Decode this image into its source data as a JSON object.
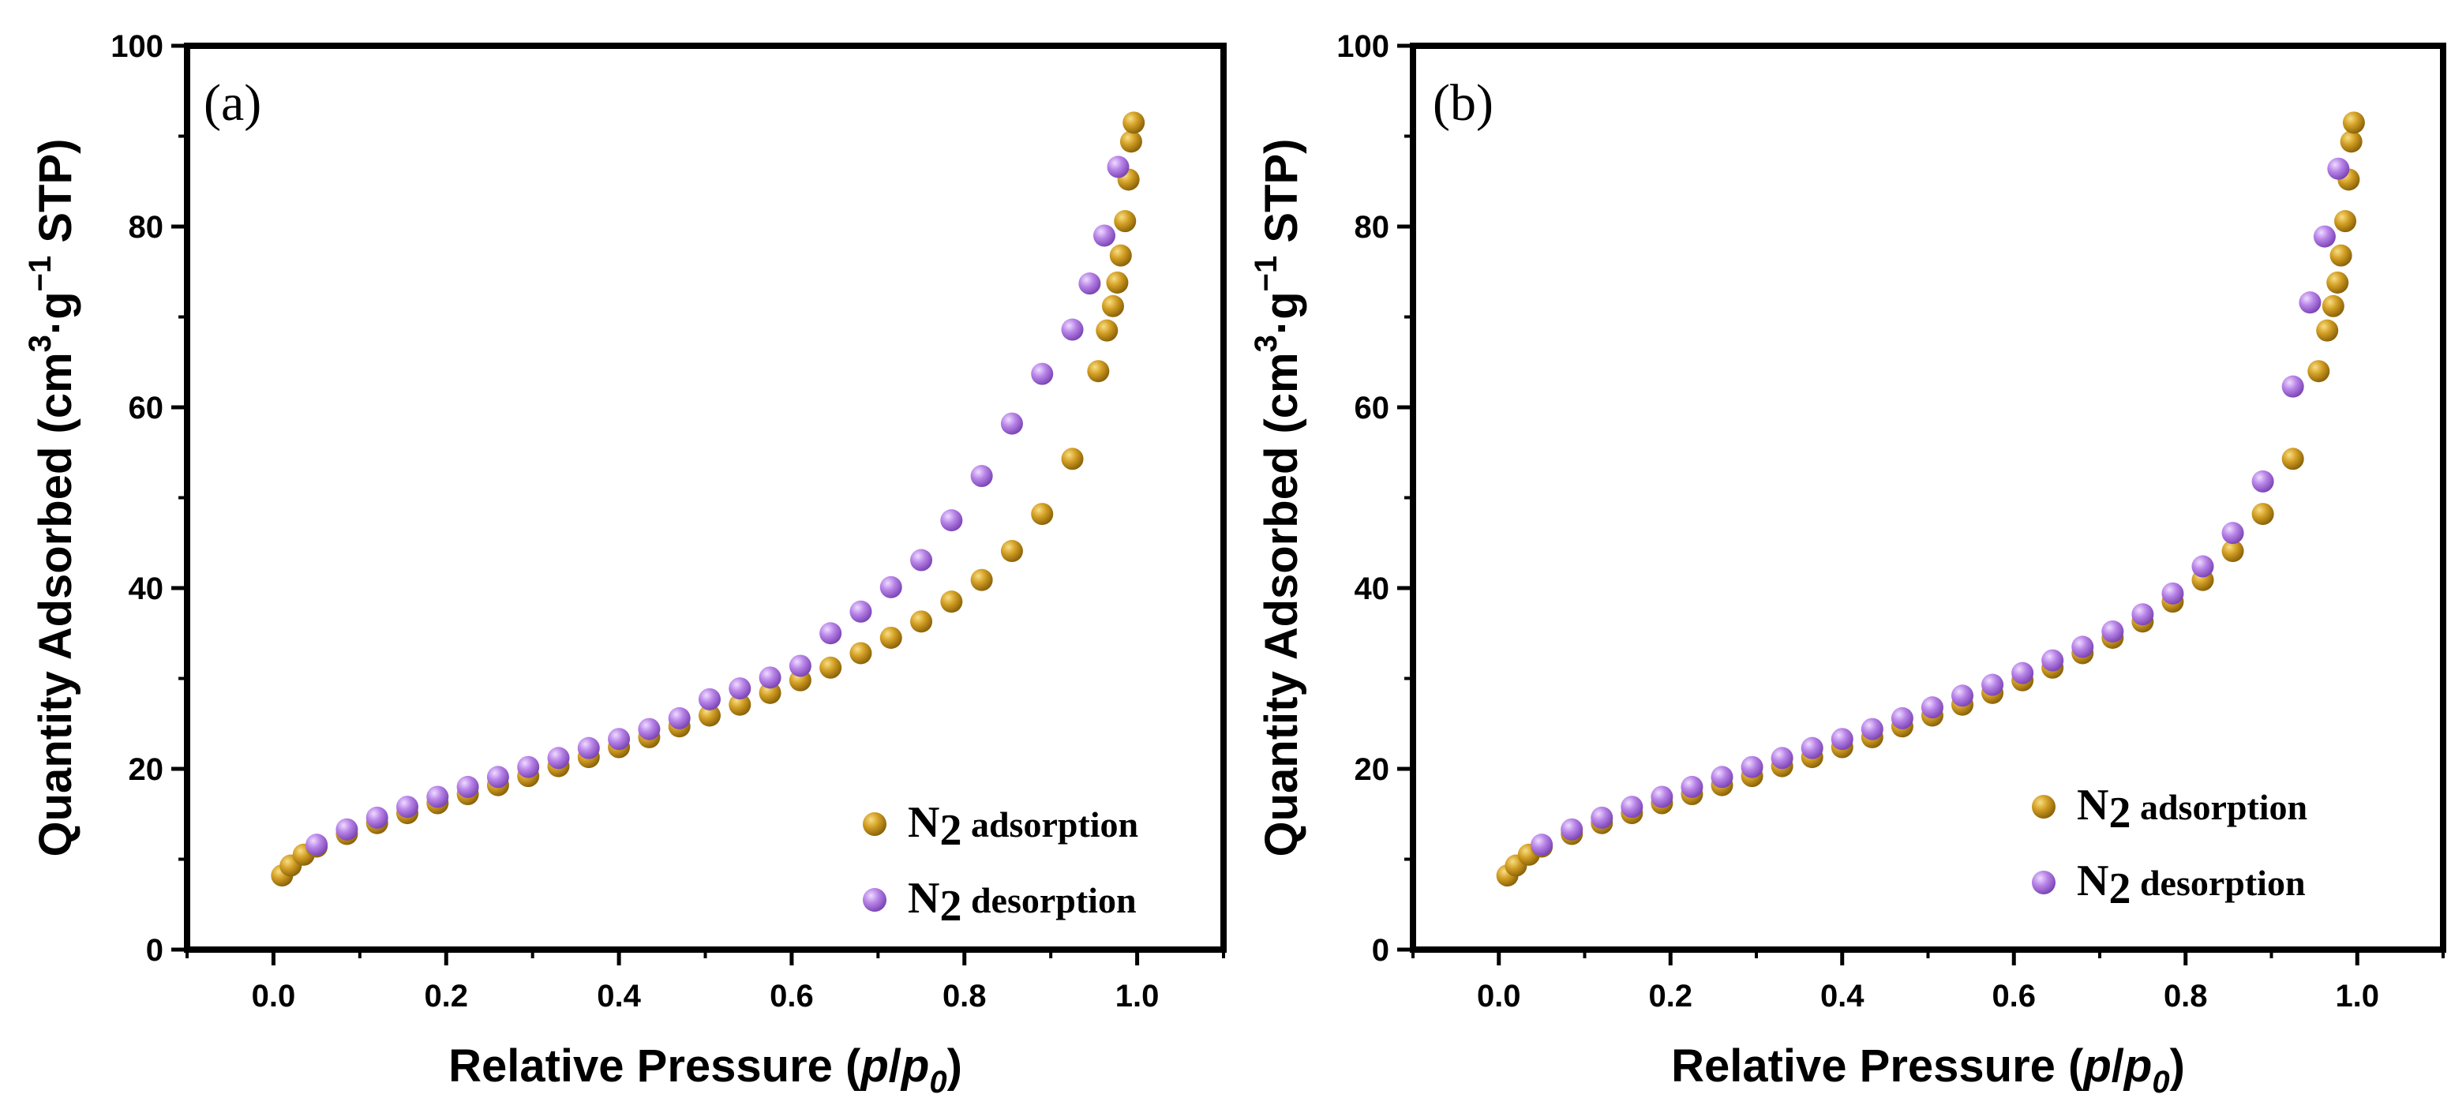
{
  "chart_data": [
    {
      "type": "scatter",
      "panel_label": "(a)",
      "xlabel": "Relative Pressure (",
      "xlabel_var1": "p",
      "xlabel_slash": "/",
      "xlabel_var2": "p",
      "xlabel_sub": "0",
      "xlabel_close": ")",
      "ylabel": "Quantity Adsorbed (cm",
      "ylabel_sup1": "3",
      "ylabel_mid": "·g",
      "ylabel_sup2": "−1",
      "ylabel_end": " STP)",
      "xlim": [
        -0.1,
        1.1
      ],
      "ylim": [
        0,
        100
      ],
      "xticks": [
        "0.0",
        "0.2",
        "0.4",
        "0.6",
        "0.8",
        "1.0"
      ],
      "yticks": [
        "0",
        "20",
        "40",
        "60",
        "80",
        "100"
      ],
      "legend_position": "lower-right",
      "series": [
        {
          "name": "N2 adsorption",
          "name_main": "N",
          "name_sub": "2",
          "name_rest": " adsorption",
          "color": "#C9961A",
          "x": [
            0.01,
            0.02,
            0.035,
            0.05,
            0.085,
            0.12,
            0.155,
            0.19,
            0.225,
            0.26,
            0.295,
            0.33,
            0.365,
            0.4,
            0.435,
            0.47,
            0.505,
            0.54,
            0.575,
            0.61,
            0.645,
            0.68,
            0.715,
            0.75,
            0.785,
            0.82,
            0.855,
            0.89,
            0.925,
            0.955,
            0.965,
            0.972,
            0.977,
            0.981,
            0.986,
            0.99,
            0.993,
            0.996
          ],
          "y": [
            8.2,
            9.3,
            10.5,
            11.4,
            12.8,
            14.0,
            15.1,
            16.2,
            17.2,
            18.2,
            19.2,
            20.3,
            21.3,
            22.4,
            23.5,
            24.7,
            25.9,
            27.1,
            28.4,
            29.8,
            31.2,
            32.8,
            34.5,
            36.3,
            38.5,
            40.9,
            44.1,
            48.2,
            54.3,
            64.0,
            68.5,
            71.2,
            73.8,
            76.8,
            80.6,
            85.2,
            89.4,
            91.5
          ]
        },
        {
          "name": "N2 desorption",
          "name_main": "N",
          "name_sub": "2",
          "name_rest": " desorption",
          "color": "#B57FE0",
          "x": [
            0.05,
            0.085,
            0.12,
            0.155,
            0.19,
            0.225,
            0.26,
            0.295,
            0.33,
            0.365,
            0.4,
            0.435,
            0.47,
            0.505,
            0.54,
            0.575,
            0.61,
            0.645,
            0.68,
            0.715,
            0.75,
            0.785,
            0.82,
            0.855,
            0.89,
            0.925,
            0.945,
            0.962,
            0.978
          ],
          "y": [
            11.6,
            13.3,
            14.6,
            15.8,
            16.9,
            18.0,
            19.1,
            20.2,
            21.2,
            22.3,
            23.3,
            24.4,
            25.6,
            27.7,
            28.9,
            30.1,
            31.4,
            35.0,
            37.4,
            40.1,
            43.1,
            47.5,
            52.4,
            58.2,
            63.7,
            68.6,
            73.7,
            79.0,
            86.6
          ]
        }
      ]
    },
    {
      "type": "scatter",
      "panel_label": "(b)",
      "xlabel": "Relative Pressure (",
      "xlabel_var1": "p",
      "xlabel_slash": "/",
      "xlabel_var2": "p",
      "xlabel_sub": "0",
      "xlabel_close": ")",
      "ylabel": "Quantity Adsorbed (cm",
      "ylabel_sup1": "3",
      "ylabel_mid": "·g",
      "ylabel_sup2": "−1",
      "ylabel_end": " STP)",
      "xlim": [
        -0.1,
        1.1
      ],
      "ylim": [
        0,
        100
      ],
      "xticks": [
        "0.0",
        "0.2",
        "0.4",
        "0.6",
        "0.8",
        "1.0"
      ],
      "yticks": [
        "0",
        "20",
        "40",
        "60",
        "80",
        "100"
      ],
      "legend_position": "lower-right",
      "series": [
        {
          "name": "N2 adsorption",
          "name_main": "N",
          "name_sub": "2",
          "name_rest": " adsorption",
          "color": "#C9961A",
          "x": [
            0.01,
            0.02,
            0.035,
            0.05,
            0.085,
            0.12,
            0.155,
            0.19,
            0.225,
            0.26,
            0.295,
            0.33,
            0.365,
            0.4,
            0.435,
            0.47,
            0.505,
            0.54,
            0.575,
            0.61,
            0.645,
            0.68,
            0.715,
            0.75,
            0.785,
            0.82,
            0.855,
            0.89,
            0.925,
            0.955,
            0.965,
            0.972,
            0.977,
            0.981,
            0.986,
            0.99,
            0.993,
            0.996
          ],
          "y": [
            8.2,
            9.3,
            10.5,
            11.4,
            12.8,
            14.0,
            15.1,
            16.2,
            17.2,
            18.2,
            19.2,
            20.3,
            21.3,
            22.4,
            23.5,
            24.7,
            25.9,
            27.1,
            28.4,
            29.8,
            31.2,
            32.8,
            34.5,
            36.3,
            38.5,
            40.9,
            44.1,
            48.2,
            54.3,
            64.0,
            68.5,
            71.2,
            73.8,
            76.8,
            80.6,
            85.2,
            89.4,
            91.5
          ]
        },
        {
          "name": "N2 desorption",
          "name_main": "N",
          "name_sub": "2",
          "name_rest": " desorption",
          "color": "#B57FE0",
          "x": [
            0.05,
            0.085,
            0.12,
            0.155,
            0.19,
            0.225,
            0.26,
            0.295,
            0.33,
            0.365,
            0.4,
            0.435,
            0.47,
            0.505,
            0.54,
            0.575,
            0.61,
            0.645,
            0.68,
            0.715,
            0.75,
            0.785,
            0.82,
            0.855,
            0.89,
            0.925,
            0.945,
            0.962,
            0.978
          ],
          "y": [
            11.6,
            13.3,
            14.6,
            15.8,
            16.9,
            18.0,
            19.1,
            20.2,
            21.2,
            22.3,
            23.3,
            24.4,
            25.6,
            26.8,
            28.1,
            29.3,
            30.6,
            32.0,
            33.5,
            35.2,
            37.1,
            39.4,
            42.4,
            46.1,
            51.8,
            62.3,
            71.6,
            78.9,
            86.4
          ]
        }
      ]
    }
  ]
}
